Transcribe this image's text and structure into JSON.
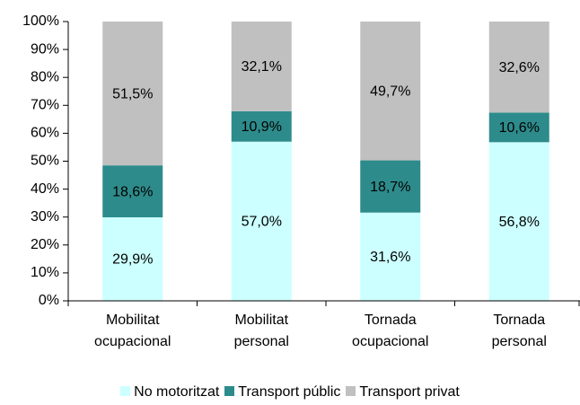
{
  "chart_data": {
    "type": "stacked_bar",
    "categories": [
      "Mobilitat ocupacional",
      "Mobilitat personal",
      "Tornada ocupacional",
      "Tornada personal"
    ],
    "series": [
      {
        "name": "No motoritzat",
        "color": "#ccffff",
        "values": [
          29.9,
          57.0,
          31.6,
          56.8
        ],
        "value_labels": [
          "29,9%",
          "57,0%",
          "31,6%",
          "56,8%"
        ]
      },
      {
        "name": "Transport públic",
        "color": "#2e8b8b",
        "values": [
          18.6,
          10.9,
          18.7,
          10.6
        ],
        "value_labels": [
          "18,6%",
          "10,9%",
          "18,7%",
          "10,6%"
        ]
      },
      {
        "name": "Transport privat",
        "color": "#c0c0c0",
        "values": [
          51.5,
          32.1,
          49.7,
          32.6
        ],
        "value_labels": [
          "51,5%",
          "32,1%",
          "49,7%",
          "32,6%"
        ]
      }
    ],
    "ylim": [
      0,
      100
    ],
    "yticks": [
      {
        "value": 0,
        "label": "0%"
      },
      {
        "value": 10,
        "label": "10%"
      },
      {
        "value": 20,
        "label": "20%"
      },
      {
        "value": 30,
        "label": "30%"
      },
      {
        "value": 40,
        "label": "40%"
      },
      {
        "value": 50,
        "label": "50%"
      },
      {
        "value": 60,
        "label": "60%"
      },
      {
        "value": 70,
        "label": "70%"
      },
      {
        "value": 80,
        "label": "80%"
      },
      {
        "value": 90,
        "label": "90%"
      },
      {
        "value": 100,
        "label": "100%"
      }
    ],
    "legend": "bottom"
  }
}
